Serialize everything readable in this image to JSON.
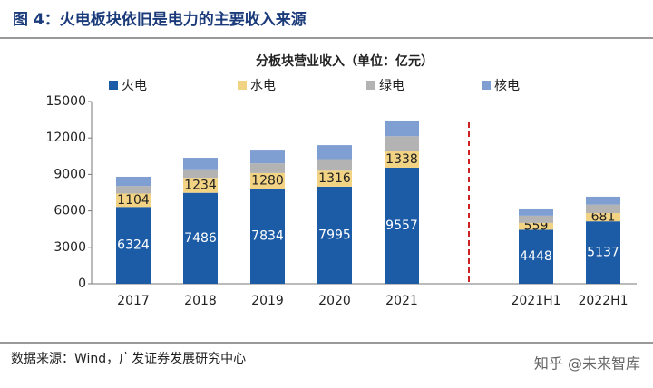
{
  "figure_title": "图 4：火电板块依旧是电力的主要收入来源",
  "source": "数据来源：Wind，广发证券发展研究中心",
  "watermark": "知乎 @未来智库",
  "chart_data": {
    "type": "stacked_bar",
    "title": "分板块营业收入（单位：亿元）",
    "categories": [
      "2017",
      "2018",
      "2019",
      "2020",
      "2021",
      null,
      "2021H1",
      "2022H1"
    ],
    "series": [
      {
        "name": "火电",
        "color": "#1c5ca6",
        "data_labels": true,
        "label_color": "#ffffff",
        "values": [
          6324,
          7486,
          7834,
          7995,
          9557,
          null,
          4448,
          5137
        ]
      },
      {
        "name": "水电",
        "color": "#f2d384",
        "data_labels": true,
        "label_color": "#222222",
        "values": [
          1104,
          1234,
          1280,
          1316,
          1338,
          null,
          559,
          681
        ]
      },
      {
        "name": "绿电",
        "color": "#b3b3b3",
        "values": [
          620,
          700,
          800,
          950,
          1250,
          null,
          600,
          700
        ]
      },
      {
        "name": "核电",
        "color": "#7f9fd2",
        "values": [
          760,
          950,
          1050,
          1150,
          1290,
          null,
          590,
          650
        ]
      }
    ],
    "ylim": [
      0,
      15000
    ],
    "yticks": [
      0,
      3000,
      6000,
      9000,
      12000,
      15000
    ],
    "grid": false,
    "divider_color": "#cc2222"
  }
}
